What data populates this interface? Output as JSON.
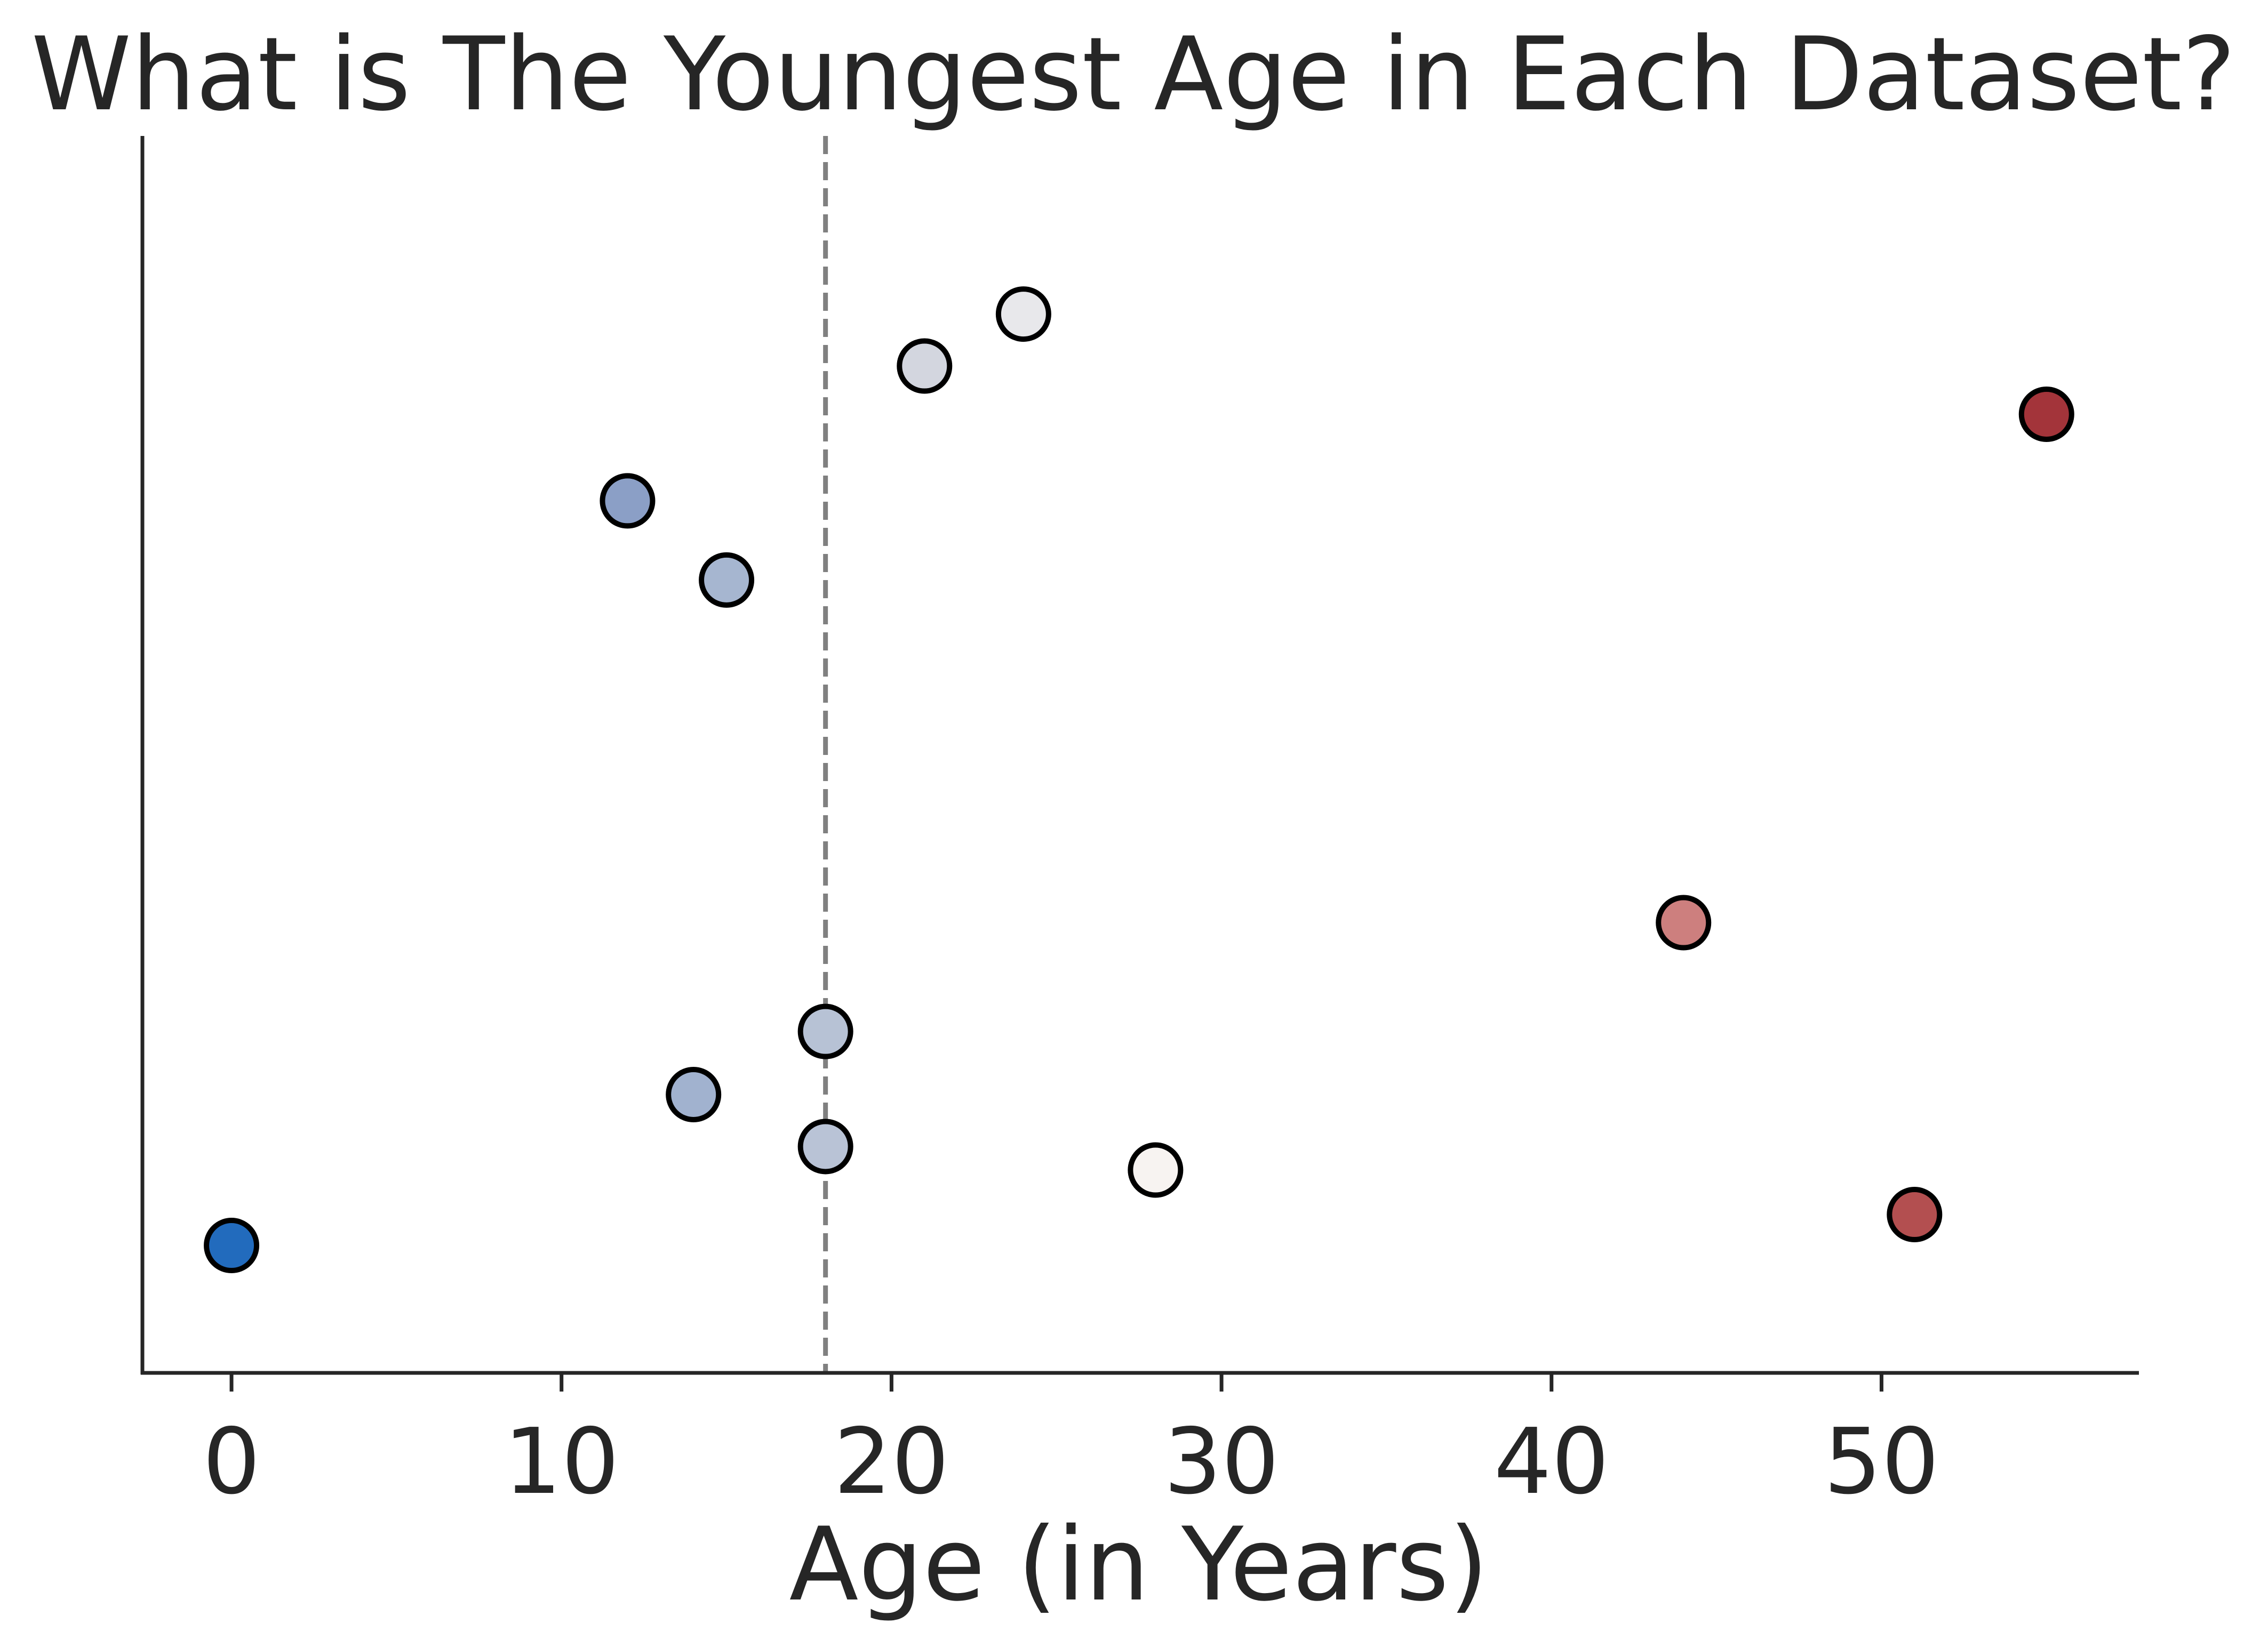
{
  "chart_data": {
    "type": "scatter",
    "title": "What is The Youngest Age in Each Dataset?",
    "xlabel": "Age (in Years)",
    "ylabel": "",
    "xlim": [
      -2.7,
      57.8
    ],
    "ylim": [
      0,
      1
    ],
    "xticks": [
      0,
      10,
      20,
      30,
      40,
      50
    ],
    "y_ticks_shown": false,
    "grid": false,
    "reference_line": {
      "x": 18,
      "style": "dashed",
      "color": "#808080"
    },
    "colors": {
      "text": "#262626",
      "axis": "#262626",
      "marker_edge": "#000000"
    },
    "points": [
      {
        "x": 0,
        "y": 0.103,
        "color": "#226bbd"
      },
      {
        "x": 12,
        "y": 0.705,
        "color": "#8b9fc6"
      },
      {
        "x": 14,
        "y": 0.225,
        "color": "#a1b2cf"
      },
      {
        "x": 15,
        "y": 0.641,
        "color": "#a6b6d0"
      },
      {
        "x": 18,
        "y": 0.276,
        "color": "#b7c2d5"
      },
      {
        "x": 18,
        "y": 0.183,
        "color": "#b9c3d6"
      },
      {
        "x": 21,
        "y": 0.814,
        "color": "#d3d6df"
      },
      {
        "x": 24,
        "y": 0.856,
        "color": "#e8e8eb"
      },
      {
        "x": 28,
        "y": 0.164,
        "color": "#f7f3f1"
      },
      {
        "x": 44,
        "y": 0.364,
        "color": "#cd7f7e"
      },
      {
        "x": 51,
        "y": 0.128,
        "color": "#b34f50"
      },
      {
        "x": 55,
        "y": 0.775,
        "color": "#a3343a"
      }
    ]
  }
}
